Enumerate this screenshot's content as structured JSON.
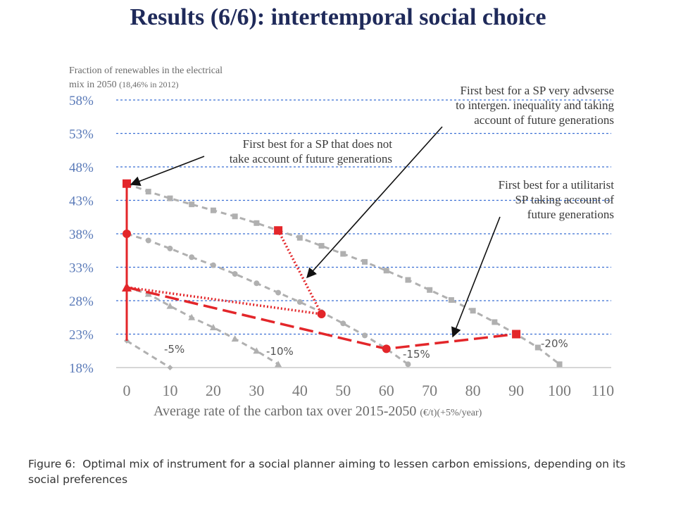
{
  "slide": {
    "title": "Results (6/6): intertemporal social choice",
    "caption_label": "Figure 6:",
    "caption_text": "Optimal mix of instrument for a social planner aiming to lessen carbon emissions, depending on its social preferences"
  },
  "chart_data": {
    "type": "line",
    "ylabel_line1": "Fraction of renewables in the electrical",
    "ylabel_line2_main": "mix in 2050",
    "ylabel_line2_note": "(18,46% in 2012)",
    "xlabel_main": "Average rate of the carbon tax over 2015-2050",
    "xlabel_unit": "(€/t)(+5%/year)",
    "x_ticks": [
      0,
      10,
      20,
      30,
      40,
      50,
      60,
      70,
      80,
      90,
      100,
      110
    ],
    "y_ticks": [
      18,
      23,
      28,
      33,
      38,
      43,
      48,
      53,
      58
    ],
    "y_tick_labels": [
      "18%",
      "23%",
      "28%",
      "33%",
      "38%",
      "43%",
      "48%",
      "53%",
      "58%"
    ],
    "xlim": [
      0,
      110
    ],
    "ylim": [
      18,
      58
    ],
    "grid": "horizontal dashed",
    "colors": {
      "isoline": "#b0b0b0",
      "red": "#e3262a",
      "grid": "#3b6fd4",
      "axis_text": "#5a7ab8",
      "annotation": "#3a3a3a"
    },
    "isolines": [
      {
        "name": "-5%",
        "marker": "diamond",
        "points": [
          [
            0,
            22
          ],
          [
            10,
            18
          ]
        ]
      },
      {
        "name": "-10%",
        "marker": "triangle",
        "points": [
          [
            0,
            30
          ],
          [
            5,
            29
          ],
          [
            10,
            27.2
          ],
          [
            15,
            25.5
          ],
          [
            20,
            24
          ],
          [
            25,
            22.3
          ],
          [
            30,
            20.5
          ],
          [
            35,
            18.5
          ]
        ]
      },
      {
        "name": "-15%",
        "marker": "circle",
        "points": [
          [
            0,
            38
          ],
          [
            5,
            37
          ],
          [
            10,
            35.8
          ],
          [
            15,
            34.5
          ],
          [
            20,
            33.3
          ],
          [
            25,
            32
          ],
          [
            30,
            30.6
          ],
          [
            35,
            29.2
          ],
          [
            40,
            27.8
          ],
          [
            45,
            26.3
          ],
          [
            50,
            24.6
          ],
          [
            55,
            22.8
          ],
          [
            60,
            20.8
          ],
          [
            65,
            18.5
          ]
        ]
      },
      {
        "name": "-20%",
        "marker": "square",
        "points": [
          [
            0,
            45.5
          ],
          [
            5,
            44.3
          ],
          [
            10,
            43.3
          ],
          [
            15,
            42.4
          ],
          [
            20,
            41.5
          ],
          [
            25,
            40.6
          ],
          [
            30,
            39.6
          ],
          [
            35,
            38.5
          ],
          [
            40,
            37.4
          ],
          [
            45,
            36.2
          ],
          [
            50,
            35
          ],
          [
            55,
            33.8
          ],
          [
            60,
            32.5
          ],
          [
            65,
            31.1
          ],
          [
            70,
            29.6
          ],
          [
            75,
            28.1
          ],
          [
            80,
            26.5
          ],
          [
            85,
            24.8
          ],
          [
            90,
            23
          ],
          [
            95,
            21
          ],
          [
            100,
            18.5
          ]
        ]
      }
    ],
    "red_series": [
      {
        "name": "vertical",
        "style": "solid",
        "points": [
          [
            0,
            45.5
          ],
          [
            0,
            38
          ],
          [
            0,
            30
          ],
          [
            0,
            22
          ]
        ]
      },
      {
        "name": "SP very adverse",
        "style": "dotted",
        "points": [
          [
            35,
            38.5
          ],
          [
            45,
            26
          ],
          [
            0,
            30
          ]
        ]
      },
      {
        "name": "utilitarist",
        "style": "dashed",
        "points": [
          [
            0,
            30
          ],
          [
            60,
            20.8
          ],
          [
            90,
            23
          ]
        ]
      }
    ],
    "red_markers": [
      {
        "x": 0,
        "y": 45.5,
        "shape": "square"
      },
      {
        "x": 0,
        "y": 38,
        "shape": "circle"
      },
      {
        "x": 0,
        "y": 30,
        "shape": "triangle"
      },
      {
        "x": 35,
        "y": 38.5,
        "shape": "square"
      },
      {
        "x": 45,
        "y": 26,
        "shape": "circle"
      },
      {
        "x": 60,
        "y": 20.8,
        "shape": "circle"
      },
      {
        "x": 90,
        "y": 23,
        "shape": "square"
      }
    ],
    "annotations": [
      {
        "lines": [
          "First best for a SP that does not",
          "take account of future generations"
        ]
      },
      {
        "lines": [
          "First best for a SP very advserse",
          "to intergen. inequality and taking",
          "account of future generations"
        ]
      },
      {
        "lines": [
          "First best for a utilitarist",
          "SP taking account of",
          "future generations"
        ]
      }
    ]
  }
}
